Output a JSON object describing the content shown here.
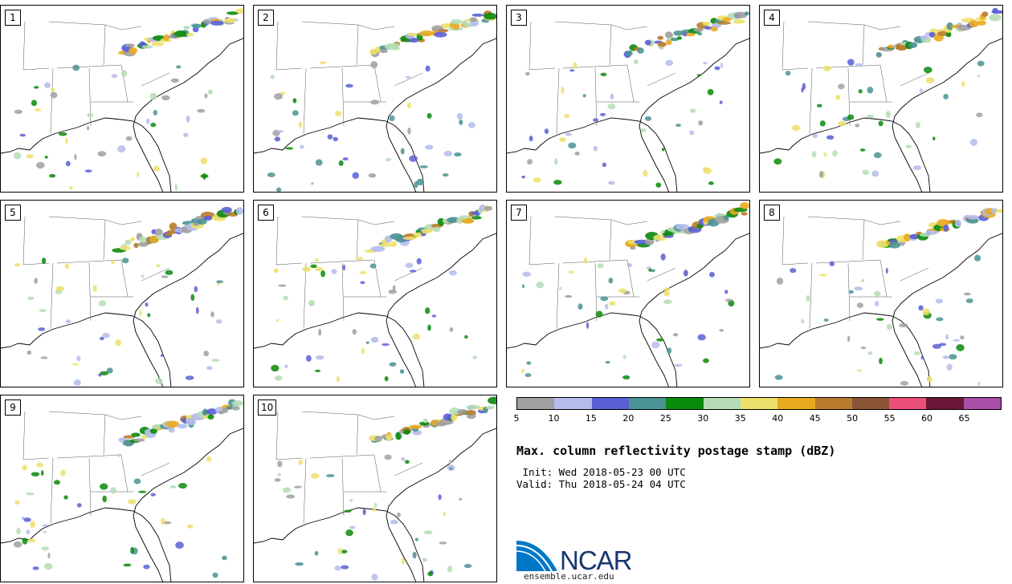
{
  "panels": [
    {
      "label": "1"
    },
    {
      "label": "2"
    },
    {
      "label": "3"
    },
    {
      "label": "4"
    },
    {
      "label": "5"
    },
    {
      "label": "6"
    },
    {
      "label": "7"
    },
    {
      "label": "8"
    },
    {
      "label": "9"
    },
    {
      "label": "10"
    }
  ],
  "colorbar": {
    "colors": [
      "#a0a0a0",
      "#b3bceb",
      "#5a5fd6",
      "#4a9393",
      "#0a8a0a",
      "#b6dcb6",
      "#ece06a",
      "#eaaa1f",
      "#b87c2c",
      "#8a5536",
      "#ec4e7a",
      "#6a1637",
      "#a84ea8"
    ],
    "ticks": [
      "5",
      "10",
      "15",
      "20",
      "25",
      "30",
      "35",
      "40",
      "45",
      "50",
      "55",
      "60",
      "65"
    ]
  },
  "title": "Max. column reflectivity postage stamp (dBZ)",
  "init": " Init: Wed 2018-05-23 00 UTC",
  "valid": "Valid: Thu 2018-05-24 04 UTC",
  "logo": {
    "text": "NCAR",
    "site": "ensemble.ucar.edu",
    "brand_blue": "#0078c8",
    "text_color": "#17366e"
  }
}
